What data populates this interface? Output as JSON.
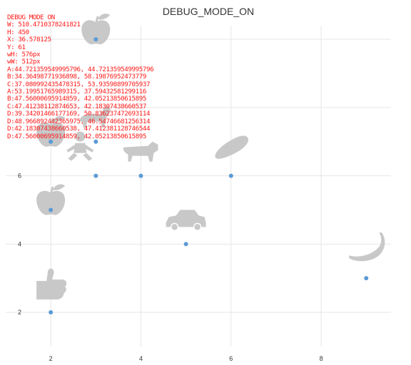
{
  "chart_data": {
    "type": "scatter",
    "title": "DEBUG_MODE_ON",
    "xlabel": "",
    "ylabel": "",
    "xlim": [
      1.0,
      9.55
    ],
    "ylim": [
      1.0,
      10.4
    ],
    "x_ticks": [
      2,
      4,
      6,
      8
    ],
    "y_ticks": [
      2,
      4,
      6
    ],
    "grid": true,
    "point_color": "#5b9bd5",
    "icon_color": "#c8c8c8",
    "points": [
      {
        "x": 3,
        "y": 10,
        "icon": "apple-icon"
      },
      {
        "x": 2,
        "y": 7,
        "icon": "apple-icon"
      },
      {
        "x": 3,
        "y": 7,
        "icon": "horse-icon"
      },
      {
        "x": 3,
        "y": 6,
        "icon": "baby-icon"
      },
      {
        "x": 4,
        "y": 6,
        "icon": "cow-icon"
      },
      {
        "x": 6,
        "y": 6,
        "icon": "bread-icon"
      },
      {
        "x": 2,
        "y": 5,
        "icon": "apple-icon"
      },
      {
        "x": 5,
        "y": 4,
        "icon": "car-icon"
      },
      {
        "x": 9,
        "y": 3,
        "icon": "banana-icon"
      },
      {
        "x": 2,
        "y": 2,
        "icon": "thumbs-up-icon"
      }
    ]
  },
  "debug": {
    "lines": [
      "DEBUG MODE ON",
      "W: 510.4710378241821",
      "H: 450",
      "X: 36.578125",
      "Y: 61",
      "wH: 576px",
      "wW: 512px",
      "A:44.721359549995796, 44.721359549995796",
      "B:34.36498771936898, 58.19876952473779",
      "C:37.080992435478315, 53.93598899705937",
      "A:53.19951765989315, 37.59432581299116",
      "B:47.56000695914859, 42.05213850615895",
      "C:47.41238112874653, 42.18307438660537",
      "D:39.34201466177169, 50.836237472693114",
      "D:48.966892442365975, 46.54746681256314",
      "D:42.18307438660538, 47.412381128746544",
      "D:47.56000695914859, 42.05213850615895"
    ]
  }
}
